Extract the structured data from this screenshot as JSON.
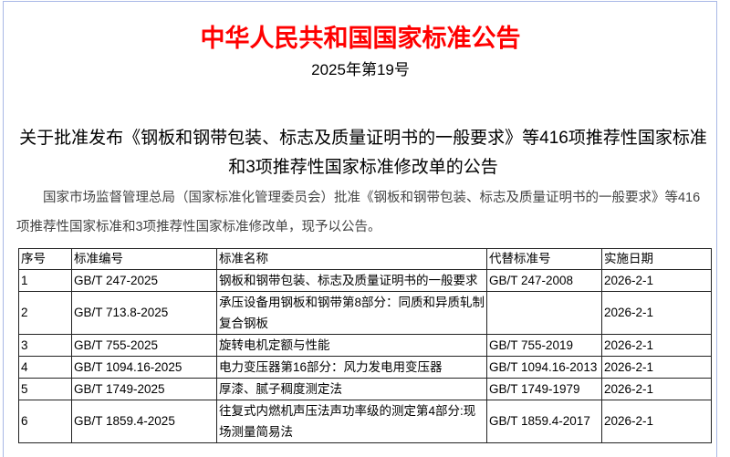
{
  "title": "中华人民共和国国家标准公告",
  "issue": "2025年第19号",
  "heading": "关于批准发布《钢板和钢带包装、标志及质量证明书的一般要求》等416项推荐性国家标准和3项推荐性国家标准修改单的公告",
  "paragraph": "国家市场监督管理总局（国家标准化管理委员会）批准《钢板和钢带包装、标志及质量证明书的一般要求》等416项推荐性国家标准和3项推荐性国家标准修改单，现予以公告。",
  "table": {
    "headers": [
      "序号",
      "标准编号",
      "标准名称",
      "代替标准号",
      "实施日期"
    ],
    "rows": [
      [
        "1",
        "GB/T 247-2025",
        "钢板和钢带包装、标志及质量证明书的一般要求",
        "GB/T 247-2008",
        "2026-2-1"
      ],
      [
        "2",
        "GB/T 713.8-2025",
        "承压设备用钢板和钢带第8部分：同质和异质轧制复合钢板",
        "",
        "2026-2-1"
      ],
      [
        "3",
        "GB/T 755-2025",
        "旋转电机定额与性能",
        "GB/T 755-2019",
        "2026-2-1"
      ],
      [
        "4",
        "GB/T 1094.16-2025",
        "电力变压器第16部分：风力发电用变压器",
        "GB/T 1094.16-2013",
        "2026-2-1"
      ],
      [
        "5",
        "GB/T 1749-2025",
        "厚漆、腻子稠度测定法",
        "GB/T 1749-1979",
        "2026-2-1"
      ],
      [
        "6",
        "GB/T 1859.4-2025",
        "往复式内燃机声压法声功率级的测定第4部分:现场测量简易法",
        "GB/T 1859.4-2017",
        "2026-2-1"
      ]
    ]
  },
  "colors": {
    "title": "#ff0000",
    "frame": "#a9b8e6"
  }
}
